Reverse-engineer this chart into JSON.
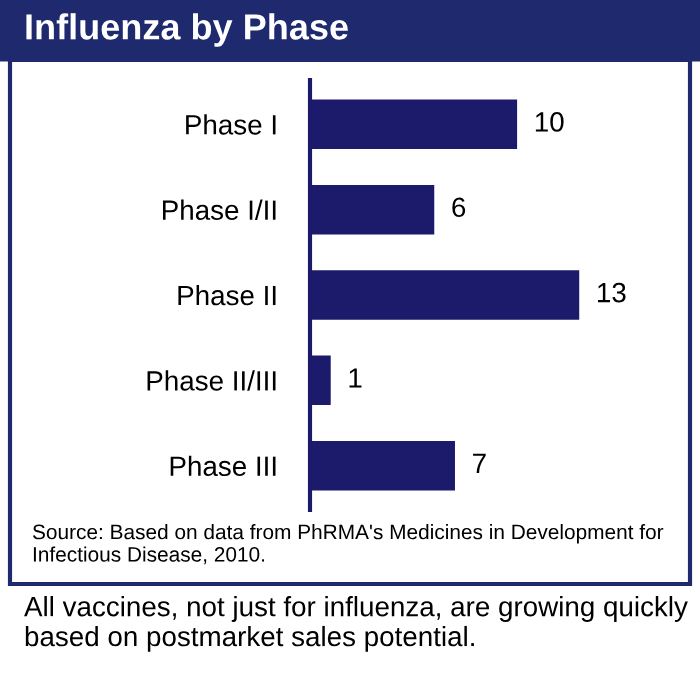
{
  "chart_data": {
    "type": "bar",
    "orientation": "horizontal",
    "title": "Influenza by Phase",
    "categories": [
      "Phase I",
      "Phase I/II",
      "Phase II",
      "Phase II/III",
      "Phase III"
    ],
    "values": [
      10,
      6,
      13,
      1,
      7
    ],
    "color": "#1c1a6b",
    "data_labels": true,
    "tick_labels": "y",
    "grid": false,
    "annotations": [
      "Source: Based on data from PhRMA's Medicines in Development for Infectious Disease, 2010.",
      "All vaccines, not just for influenza, are growing quickly based on postmarket sales potential."
    ]
  }
}
